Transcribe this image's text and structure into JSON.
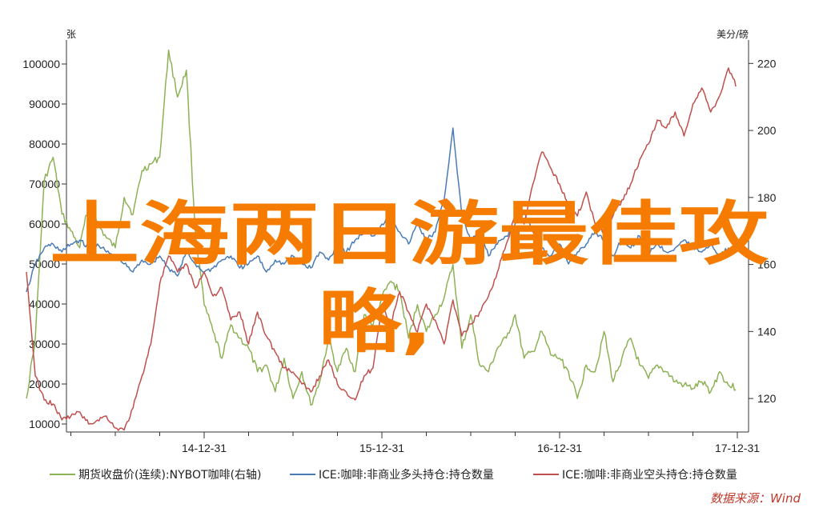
{
  "chart_data": {
    "type": "line",
    "title": "",
    "left_axis": {
      "unit": "张",
      "ylim": [
        8000,
        106000
      ],
      "ticks": [
        "10000",
        "20000",
        "30000",
        "40000",
        "50000",
        "60000",
        "70000",
        "80000",
        "90000",
        "100000"
      ]
    },
    "right_axis": {
      "unit": "美分/磅",
      "ylim": [
        110,
        227
      ],
      "ticks": [
        "120",
        "140",
        "160",
        "180",
        "200",
        "220"
      ]
    },
    "x_axis": {
      "labels": [
        "14-12-31",
        "15-12-31",
        "16-12-31",
        "17-12-31"
      ]
    },
    "series": [
      {
        "name": "期货收盘价(连续):NYBOT咖啡(右轴)",
        "axis": "right",
        "color": "#8db256",
        "x": [
          0.0,
          0.05,
          0.1,
          0.15,
          0.2,
          0.25,
          0.3,
          0.35,
          0.4,
          0.45,
          0.5,
          0.55,
          0.6,
          0.65,
          0.7,
          0.75,
          0.8,
          0.85,
          0.9,
          0.95,
          1.0,
          1.05,
          1.1,
          1.15,
          1.2,
          1.25,
          1.3,
          1.35,
          1.4,
          1.45,
          1.5,
          1.55,
          1.6,
          1.65,
          1.7,
          1.75,
          1.8,
          1.85,
          1.9,
          1.95,
          2.0,
          2.05,
          2.1,
          2.15,
          2.2,
          2.25,
          2.3,
          2.35,
          2.4,
          2.45,
          2.5,
          2.55,
          2.6,
          2.65,
          2.7,
          2.75,
          2.8,
          2.85,
          2.9,
          2.95,
          3.0,
          3.05,
          3.1,
          3.15,
          3.2,
          3.25,
          3.3,
          3.35,
          3.4,
          3.45,
          3.5,
          3.55,
          3.6,
          3.65,
          3.7,
          3.75,
          3.8,
          3.85,
          3.9,
          3.95,
          4.0
        ],
        "values": [
          120,
          138,
          185,
          192,
          175,
          170,
          165,
          178,
          172,
          168,
          165,
          180,
          175,
          188,
          190,
          192,
          224,
          210,
          218,
          170,
          148,
          140,
          132,
          142,
          138,
          135,
          128,
          130,
          122,
          132,
          120,
          128,
          118,
          125,
          138,
          128,
          135,
          128,
          145,
          142,
          150,
          155,
          152,
          138,
          148,
          140,
          145,
          150,
          160,
          135,
          145,
          130,
          128,
          135,
          138,
          145,
          132,
          134,
          140,
          133,
          132,
          128,
          120,
          130,
          128,
          140,
          125,
          132,
          138,
          130,
          126,
          130,
          128,
          125,
          124,
          123,
          125,
          122,
          128,
          124,
          123
        ]
      },
      {
        "name": "ICE:咖啡:非商业多头持仓:持仓数量",
        "axis": "left",
        "color": "#4a7bb7",
        "x": [
          0.0,
          0.05,
          0.1,
          0.15,
          0.2,
          0.25,
          0.3,
          0.35,
          0.4,
          0.45,
          0.5,
          0.55,
          0.6,
          0.65,
          0.7,
          0.75,
          0.8,
          0.85,
          0.9,
          0.95,
          1.0,
          1.05,
          1.1,
          1.15,
          1.2,
          1.25,
          1.3,
          1.35,
          1.4,
          1.45,
          1.5,
          1.55,
          1.6,
          1.65,
          1.7,
          1.75,
          1.8,
          1.85,
          1.9,
          1.95,
          2.0,
          2.05,
          2.1,
          2.15,
          2.2,
          2.25,
          2.3,
          2.35,
          2.4,
          2.45,
          2.5,
          2.55,
          2.6,
          2.65,
          2.7,
          2.75,
          2.8,
          2.85,
          2.9,
          2.95,
          3.0,
          3.05,
          3.1,
          3.15,
          3.2,
          3.25,
          3.3,
          3.35,
          3.4,
          3.45,
          3.5,
          3.55,
          3.6,
          3.65,
          3.7,
          3.75,
          3.8,
          3.85,
          3.9,
          3.95,
          4.0
        ],
        "values": [
          43000,
          50000,
          54000,
          55000,
          53000,
          55000,
          56000,
          54000,
          55000,
          53000,
          52000,
          50000,
          48000,
          51000,
          50000,
          52000,
          49000,
          47000,
          53000,
          50000,
          48000,
          49000,
          51000,
          52000,
          49000,
          50000,
          52000,
          48000,
          51000,
          50000,
          52000,
          50000,
          49000,
          53000,
          51000,
          55000,
          53000,
          56000,
          58000,
          57000,
          60000,
          62000,
          58000,
          55000,
          60000,
          56000,
          58000,
          66000,
          84000,
          62000,
          56000,
          58000,
          52000,
          55000,
          57000,
          60000,
          63000,
          58000,
          54000,
          52000,
          55000,
          50000,
          53000,
          55000,
          58000,
          56000,
          52000,
          56000,
          54000,
          57000,
          53000,
          55000,
          53000,
          54000,
          56000,
          54000,
          53000,
          55000,
          52000,
          54000,
          53000
        ]
      },
      {
        "name": "ICE:咖啡:非商业空头持仓:持仓数量",
        "axis": "left",
        "color": "#c0504d",
        "x": [
          0.0,
          0.05,
          0.1,
          0.15,
          0.2,
          0.25,
          0.3,
          0.35,
          0.4,
          0.45,
          0.5,
          0.55,
          0.6,
          0.65,
          0.7,
          0.75,
          0.8,
          0.85,
          0.9,
          0.95,
          1.0,
          1.05,
          1.1,
          1.15,
          1.2,
          1.25,
          1.3,
          1.35,
          1.4,
          1.45,
          1.5,
          1.55,
          1.6,
          1.65,
          1.7,
          1.75,
          1.8,
          1.85,
          1.9,
          1.95,
          2.0,
          2.05,
          2.1,
          2.15,
          2.2,
          2.25,
          2.3,
          2.35,
          2.4,
          2.45,
          2.5,
          2.55,
          2.6,
          2.65,
          2.7,
          2.75,
          2.8,
          2.85,
          2.9,
          2.95,
          3.0,
          3.05,
          3.1,
          3.15,
          3.2,
          3.25,
          3.3,
          3.35,
          3.4,
          3.45,
          3.5,
          3.55,
          3.6,
          3.65,
          3.7,
          3.75,
          3.8,
          3.85,
          3.9,
          3.95,
          4.0
        ],
        "values": [
          48000,
          22000,
          16000,
          15000,
          11000,
          12000,
          13000,
          10000,
          11000,
          12000,
          9000,
          8500,
          14000,
          22000,
          30000,
          45000,
          52000,
          48000,
          50000,
          44000,
          48000,
          42000,
          44000,
          36000,
          38000,
          30000,
          38000,
          32000,
          28000,
          24000,
          23000,
          20000,
          18000,
          22000,
          26000,
          20000,
          18000,
          16000,
          22000,
          24000,
          40000,
          35000,
          43000,
          38000,
          33000,
          40000,
          36000,
          30000,
          41000,
          32000,
          35000,
          38000,
          42000,
          48000,
          55000,
          62000,
          60000,
          70000,
          78000,
          74000,
          70000,
          65000,
          62000,
          68000,
          60000,
          58000,
          62000,
          66000,
          70000,
          76000,
          80000,
          86000,
          84000,
          88000,
          82000,
          90000,
          94000,
          88000,
          92000,
          99000,
          94000
        ]
      }
    ],
    "legend_position": "bottom",
    "grid": false
  },
  "source": "数据来源：Wind",
  "overlay_title": {
    "line1": "上海两日游最佳攻",
    "line2": "略,"
  }
}
